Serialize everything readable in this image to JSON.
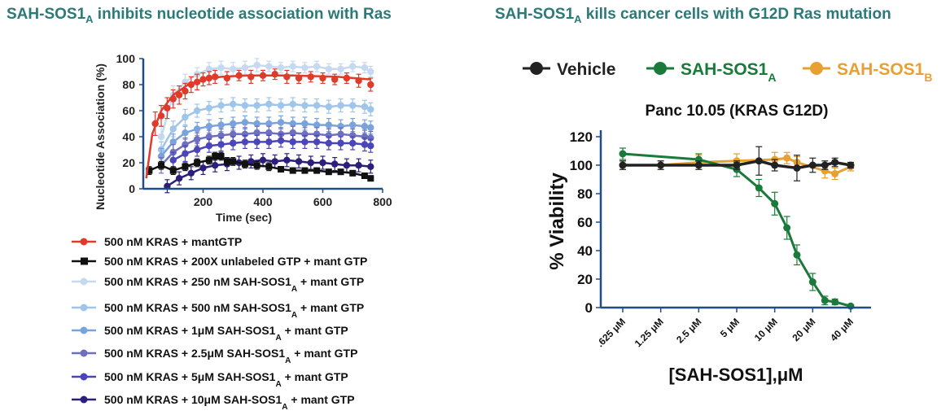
{
  "panels": {
    "left_title": "SAH-SOS1",
    "left_title_sub": "A",
    "left_title_rest": " inhibits nucleotide association with Ras",
    "right_title": "SAH-SOS1",
    "right_title_sub": "A",
    "right_title_rest": " kills cancer cells with G12D Ras mutation"
  },
  "colors": {
    "title_teal": "#2b7a77",
    "axis_blue": "#1f4e86",
    "red": "#e03a2a",
    "black": "#111111",
    "lightblue1": "#c5d9f1",
    "lightblue2": "#9fc5ea",
    "midblue": "#7aa2db",
    "slate": "#6e6fbf",
    "indigo": "#4a45b8",
    "navy": "#2a1f7a",
    "vehicle": "#222222",
    "sah_a": "#1a7a3a",
    "sah_b": "#e8a030"
  },
  "chart_data": [
    {
      "type": "line",
      "title": "",
      "xlabel": "Time (sec)",
      "ylabel": "Nucleotide Association (%)",
      "xlim": [
        0,
        800
      ],
      "ylim": [
        0,
        100
      ],
      "xticks": [
        200,
        400,
        600,
        800
      ],
      "yticks": [
        0,
        20,
        40,
        60,
        80,
        100
      ],
      "grid": false,
      "legend_position": "bottom",
      "series": [
        {
          "name": "500 nM KRAS + mantGTP",
          "color": "#e03a2a",
          "marker": "circle",
          "x": [
            40,
            60,
            80,
            100,
            120,
            140,
            160,
            180,
            200,
            220,
            240,
            280,
            320,
            360,
            400,
            440,
            480,
            520,
            560,
            600,
            640,
            680,
            720,
            760
          ],
          "y": [
            50,
            56,
            62,
            69,
            72,
            75,
            80,
            82,
            84,
            85,
            86,
            85,
            87,
            86,
            87,
            88,
            86,
            85,
            86,
            85,
            84,
            85,
            83,
            80
          ],
          "err": [
            9,
            8,
            8,
            7,
            7,
            6,
            6,
            6,
            5,
            5,
            5,
            5,
            4,
            5,
            4,
            4,
            5,
            4,
            4,
            4,
            4,
            4,
            5,
            5
          ],
          "fit": [
            [
              10,
              8
            ],
            [
              30,
              42
            ],
            [
              60,
              60
            ],
            [
              100,
              72
            ],
            [
              150,
              80
            ],
            [
              200,
              84
            ],
            [
              260,
              86
            ],
            [
              350,
              87
            ],
            [
              500,
              87
            ],
            [
              650,
              86
            ],
            [
              760,
              84
            ]
          ]
        },
        {
          "name": "500 nM KRAS + 200X unlabeled GTP + mant GTP",
          "color": "#111111",
          "marker": "square",
          "x": [
            20,
            60,
            100,
            140,
            180,
            220,
            240,
            260,
            280,
            300,
            340,
            380,
            420,
            460,
            500,
            540,
            580,
            620,
            660,
            700,
            740,
            760
          ],
          "y": [
            14,
            18,
            14,
            17,
            20,
            22,
            25,
            25,
            21,
            21,
            19,
            18,
            17,
            15,
            14,
            14,
            14,
            13,
            13,
            12,
            10,
            8
          ],
          "err": [
            3,
            3,
            3,
            3,
            3,
            3,
            3,
            3,
            3,
            3,
            3,
            3,
            3,
            2,
            2,
            2,
            2,
            2,
            2,
            2,
            2,
            2
          ]
        },
        {
          "name": "500 nM KRAS + 250 nM SAH-SOS1A + mant GTP",
          "color": "#c5d9f1",
          "marker": "circle",
          "x": [
            60,
            100,
            140,
            180,
            220,
            260,
            300,
            340,
            380,
            420,
            460,
            500,
            540,
            580,
            620,
            660,
            700,
            740,
            760
          ],
          "y": [
            40,
            72,
            82,
            88,
            92,
            93,
            92,
            93,
            95,
            94,
            93,
            94,
            93,
            94,
            92,
            92,
            94,
            93,
            90
          ],
          "err": [
            8,
            7,
            6,
            5,
            5,
            5,
            5,
            5,
            5,
            4,
            4,
            4,
            4,
            4,
            4,
            4,
            4,
            4,
            4
          ]
        },
        {
          "name": "500 nM KRAS + 500 nM SAH-SOS1A + mant GTP",
          "color": "#9fc5ea",
          "marker": "circle",
          "x": [
            60,
            100,
            140,
            180,
            220,
            260,
            300,
            340,
            380,
            420,
            460,
            500,
            540,
            580,
            620,
            660,
            700,
            740,
            760
          ],
          "y": [
            30,
            46,
            55,
            60,
            62,
            64,
            65,
            64,
            64,
            65,
            64,
            65,
            64,
            64,
            63,
            64,
            64,
            63,
            61
          ],
          "err": [
            6,
            6,
            6,
            5,
            5,
            5,
            5,
            5,
            5,
            5,
            5,
            5,
            5,
            5,
            5,
            5,
            5,
            5,
            5
          ]
        },
        {
          "name": "500 nM KRAS + 1μM SAH-SOS1A + mant GTP",
          "color": "#7aa2db",
          "marker": "circle",
          "x": [
            60,
            100,
            140,
            180,
            220,
            260,
            300,
            340,
            380,
            420,
            460,
            500,
            540,
            580,
            620,
            660,
            700,
            740,
            760
          ],
          "y": [
            25,
            36,
            43,
            46,
            48,
            49,
            50,
            51,
            50,
            50,
            51,
            50,
            50,
            49,
            49,
            48,
            49,
            48,
            47
          ],
          "err": [
            6,
            6,
            5,
            5,
            5,
            5,
            5,
            5,
            5,
            5,
            5,
            5,
            5,
            5,
            5,
            5,
            5,
            5,
            5
          ]
        },
        {
          "name": "500 nM KRAS + 2.5μM SAH-SOS1A + mant GTP",
          "color": "#6e6fbf",
          "marker": "circle",
          "x": [
            60,
            100,
            140,
            180,
            220,
            260,
            300,
            340,
            380,
            420,
            460,
            500,
            540,
            580,
            620,
            660,
            700,
            740,
            760
          ],
          "y": [
            18,
            28,
            34,
            38,
            40,
            41,
            42,
            42,
            43,
            43,
            42,
            43,
            42,
            42,
            41,
            42,
            41,
            40,
            39
          ],
          "err": [
            6,
            6,
            5,
            5,
            5,
            5,
            5,
            5,
            5,
            5,
            5,
            5,
            5,
            5,
            5,
            5,
            5,
            5,
            5
          ]
        },
        {
          "name": "500 nM KRAS + 5μM SAH-SOS1A + mant GTP",
          "color": "#4a45b8",
          "marker": "circle",
          "x": [
            100,
            140,
            180,
            220,
            260,
            300,
            340,
            380,
            420,
            460,
            500,
            540,
            580,
            620,
            660,
            700,
            740,
            760
          ],
          "y": [
            22,
            27,
            30,
            33,
            34,
            35,
            36,
            36,
            36,
            37,
            36,
            36,
            36,
            35,
            35,
            35,
            34,
            33
          ],
          "err": [
            6,
            6,
            5,
            5,
            5,
            5,
            5,
            5,
            5,
            5,
            5,
            5,
            5,
            5,
            5,
            5,
            5,
            5
          ]
        },
        {
          "name": "500 nM KRAS + 10μM SAH-SOS1A + mant GTP",
          "color": "#2a1f7a",
          "marker": "circle",
          "x": [
            80,
            120,
            160,
            200,
            240,
            280,
            320,
            360,
            400,
            440,
            480,
            520,
            560,
            600,
            640,
            680,
            720,
            760
          ],
          "y": [
            2,
            8,
            12,
            16,
            18,
            19,
            20,
            21,
            22,
            21,
            22,
            21,
            20,
            20,
            19,
            18,
            18,
            17
          ],
          "err": [
            5,
            5,
            5,
            5,
            5,
            5,
            5,
            5,
            5,
            5,
            5,
            5,
            5,
            5,
            5,
            5,
            5,
            5
          ]
        }
      ],
      "legend": [
        {
          "text": "500 nM KRAS + mantGTP",
          "sub": "",
          "rest": ""
        },
        {
          "text": "500 nM KRAS + 200X unlabeled GTP + mant GTP",
          "sub": "",
          "rest": ""
        },
        {
          "text": "500 nM KRAS + 250 nM SAH-SOS1",
          "sub": "A",
          "rest": " + mant GTP"
        },
        {
          "text": "500 nM KRAS + 500 nM SAH-SOS1",
          "sub": "A",
          "rest": " + mant GTP"
        },
        {
          "text": "500 nM KRAS + 1μM SAH-SOS1",
          "sub": "A",
          "rest": " + mant GTP"
        },
        {
          "text": "500 nM KRAS + 2.5μM SAH-SOS1",
          "sub": "A",
          "rest": " + mant GTP"
        },
        {
          "text": "500 nM KRAS + 5μM SAH-SOS1",
          "sub": "A",
          "rest": " + mant GTP"
        },
        {
          "text": "500 nM KRAS + 10μM SAH-SOS1",
          "sub": "A",
          "rest": " + mant GTP"
        }
      ]
    },
    {
      "type": "line",
      "title": "Panc 10.05 (KRAS G12D)",
      "xlabel": "[SAH-SOS1],μM",
      "ylabel": "% Viability",
      "xscale": "log",
      "xlim": [
        0.3,
        50
      ],
      "ylim": [
        0,
        120
      ],
      "xticks": [
        0.625,
        1.25,
        2.5,
        5,
        10,
        20,
        40
      ],
      "xtick_labels": [
        ".625 μM",
        "1.25 μM",
        "2.5 μM",
        "5 μM",
        "10 μM",
        "20 μM",
        "40 μM"
      ],
      "yticks": [
        0,
        20,
        40,
        60,
        80,
        100,
        120
      ],
      "grid": false,
      "legend_position": "top",
      "series": [
        {
          "name": "Vehicle",
          "legend_sub": "",
          "color": "#222222",
          "x": [
            0.625,
            1.25,
            2.5,
            5,
            7.5,
            10,
            15,
            20,
            25,
            30,
            40
          ],
          "y": [
            100,
            100,
            100,
            100,
            103,
            100,
            98,
            100,
            100,
            102,
            100
          ],
          "err": [
            3,
            3,
            3,
            3,
            10,
            4,
            9,
            5,
            3,
            3,
            2
          ]
        },
        {
          "name": "SAH-SOS1",
          "legend_sub": "A",
          "color": "#1a7a3a",
          "x": [
            0.625,
            2.5,
            5,
            7.5,
            10,
            12.5,
            15,
            20,
            25,
            30,
            40
          ],
          "y": [
            108,
            104,
            97,
            84,
            73,
            56,
            37,
            18,
            5,
            4,
            1
          ],
          "err": [
            4,
            4,
            5,
            6,
            8,
            8,
            7,
            6,
            3,
            2,
            1
          ]
        },
        {
          "name": "SAH-SOS1",
          "legend_sub": "B",
          "color": "#e8a030",
          "x": [
            0.625,
            1.25,
            2.5,
            5,
            10,
            12.5,
            15,
            25,
            30,
            40
          ],
          "y": [
            100,
            100,
            102,
            103,
            104,
            105,
            102,
            96,
            94,
            99
          ],
          "err": [
            3,
            3,
            5,
            5,
            5,
            4,
            4,
            5,
            4,
            3
          ]
        }
      ]
    }
  ]
}
